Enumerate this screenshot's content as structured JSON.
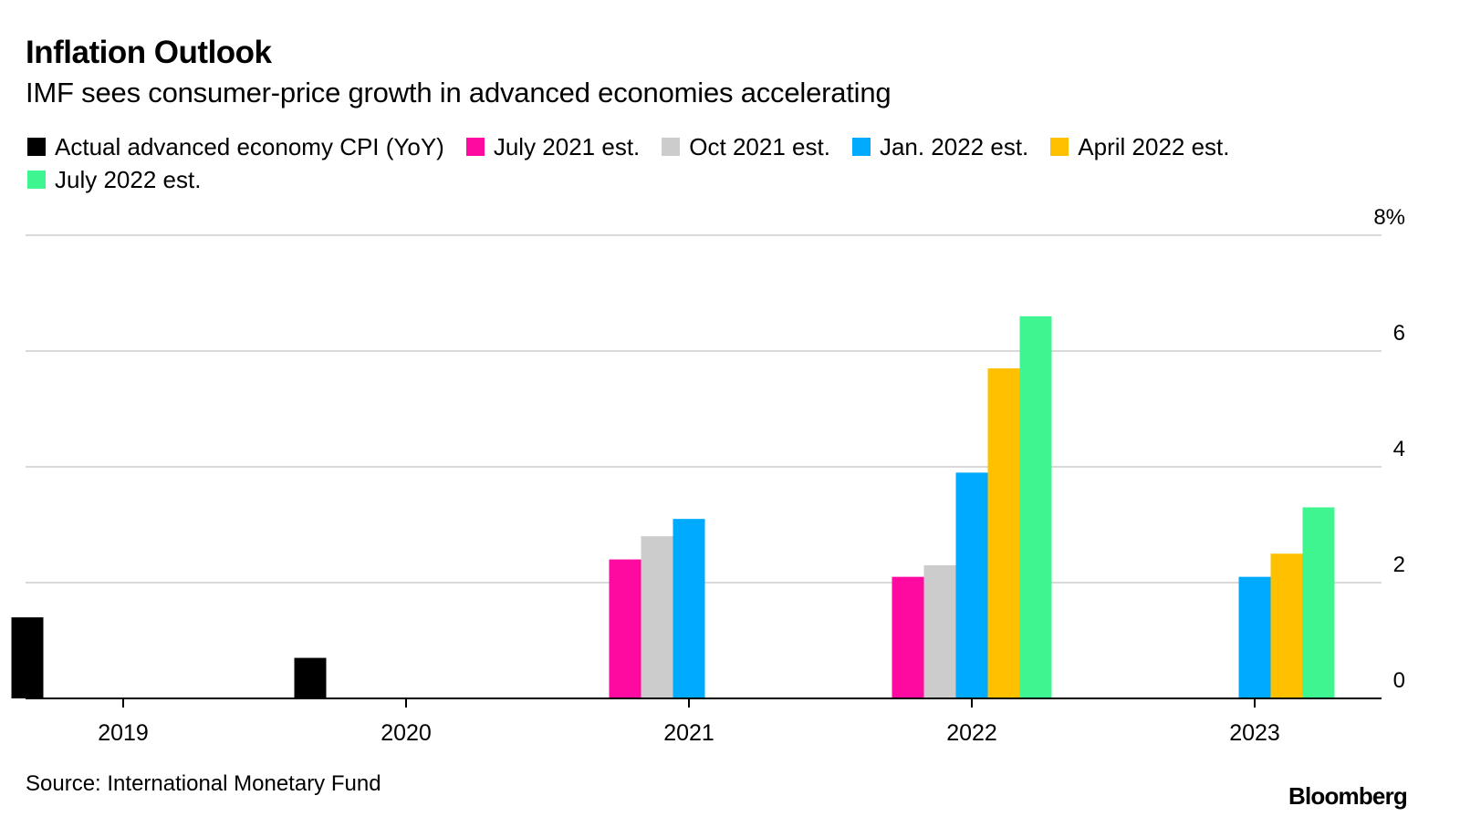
{
  "header": {
    "title": "Inflation Outlook",
    "subtitle": "IMF sees consumer-price growth in advanced economies accelerating"
  },
  "footer": {
    "source": "Source: International Monetary Fund",
    "brand": "Bloomberg"
  },
  "chart_data": {
    "type": "bar",
    "categories": [
      "2019",
      "2020",
      "2021",
      "2022",
      "2023"
    ],
    "series": [
      {
        "name": "Actual advanced economy CPI (YoY)",
        "color": "#000000",
        "values": [
          1.4,
          0.7,
          null,
          null,
          null
        ]
      },
      {
        "name": "July 2021 est.",
        "color": "#ff0aa0",
        "values": [
          null,
          null,
          2.4,
          2.1,
          null
        ]
      },
      {
        "name": "Oct 2021 est.",
        "color": "#cccccc",
        "values": [
          null,
          null,
          2.8,
          2.3,
          null
        ]
      },
      {
        "name": "Jan. 2022 est.",
        "color": "#00aaff",
        "values": [
          null,
          null,
          3.1,
          3.9,
          2.1
        ]
      },
      {
        "name": "April 2022 est.",
        "color": "#ffc000",
        "values": [
          null,
          null,
          null,
          5.7,
          2.5
        ]
      },
      {
        "name": "July 2022 est.",
        "color": "#3ef58f",
        "values": [
          null,
          null,
          null,
          6.6,
          3.3
        ]
      }
    ],
    "ylim": [
      0,
      8
    ],
    "yticks": [
      0,
      2,
      4,
      6,
      8
    ],
    "ytick_labels": [
      "0",
      "2",
      "4",
      "6",
      "8%"
    ],
    "yaxis_side": "right",
    "gridlines": true,
    "legend_position": "top",
    "xlabel": "",
    "ylabel": ""
  }
}
